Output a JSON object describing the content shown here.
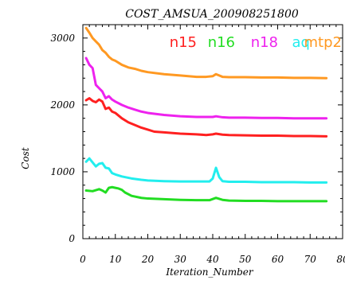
{
  "chart_data": {
    "type": "line",
    "title": "COST_AMSUA_200908251800",
    "xlabel": "Iteration_Number",
    "ylabel": "Cost",
    "xlim": [
      0,
      80
    ],
    "ylim": [
      0,
      3200
    ],
    "x_ticks": [
      0,
      10,
      20,
      30,
      40,
      50,
      60,
      70,
      80
    ],
    "y_ticks": [
      0,
      1000,
      2000,
      3000
    ],
    "legend_placement": "top",
    "series": [
      {
        "name": "n15",
        "color": "#ff2020",
        "points": [
          [
            1,
            2070
          ],
          [
            2,
            2100
          ],
          [
            3,
            2060
          ],
          [
            4,
            2040
          ],
          [
            5,
            2080
          ],
          [
            6,
            2050
          ],
          [
            7,
            1940
          ],
          [
            8,
            1960
          ],
          [
            9,
            1900
          ],
          [
            10,
            1880
          ],
          [
            12,
            1800
          ],
          [
            14,
            1740
          ],
          [
            16,
            1700
          ],
          [
            18,
            1660
          ],
          [
            20,
            1630
          ],
          [
            22,
            1600
          ],
          [
            25,
            1590
          ],
          [
            30,
            1570
          ],
          [
            35,
            1560
          ],
          [
            38,
            1550
          ],
          [
            40,
            1560
          ],
          [
            41,
            1570
          ],
          [
            43,
            1555
          ],
          [
            45,
            1550
          ],
          [
            50,
            1545
          ],
          [
            55,
            1540
          ],
          [
            60,
            1540
          ],
          [
            65,
            1535
          ],
          [
            70,
            1535
          ],
          [
            75,
            1530
          ]
        ]
      },
      {
        "name": "n16",
        "color": "#22dd22",
        "points": [
          [
            1,
            720
          ],
          [
            3,
            710
          ],
          [
            5,
            740
          ],
          [
            6,
            720
          ],
          [
            7,
            690
          ],
          [
            8,
            760
          ],
          [
            9,
            770
          ],
          [
            10,
            760
          ],
          [
            11,
            750
          ],
          [
            12,
            730
          ],
          [
            13,
            690
          ],
          [
            15,
            640
          ],
          [
            18,
            610
          ],
          [
            20,
            600
          ],
          [
            25,
            590
          ],
          [
            30,
            580
          ],
          [
            35,
            575
          ],
          [
            39,
            575
          ],
          [
            41,
            610
          ],
          [
            43,
            580
          ],
          [
            45,
            570
          ],
          [
            50,
            565
          ],
          [
            55,
            565
          ],
          [
            60,
            560
          ],
          [
            65,
            560
          ],
          [
            70,
            560
          ],
          [
            75,
            560
          ]
        ]
      },
      {
        "name": "n18",
        "color": "#ee22ee",
        "points": [
          [
            1,
            2700
          ],
          [
            2,
            2600
          ],
          [
            3,
            2550
          ],
          [
            4,
            2300
          ],
          [
            5,
            2250
          ],
          [
            6,
            2200
          ],
          [
            7,
            2100
          ],
          [
            8,
            2130
          ],
          [
            9,
            2080
          ],
          [
            10,
            2050
          ],
          [
            12,
            2000
          ],
          [
            14,
            1960
          ],
          [
            16,
            1930
          ],
          [
            18,
            1900
          ],
          [
            20,
            1880
          ],
          [
            25,
            1850
          ],
          [
            30,
            1830
          ],
          [
            35,
            1820
          ],
          [
            40,
            1820
          ],
          [
            41,
            1830
          ],
          [
            43,
            1815
          ],
          [
            45,
            1810
          ],
          [
            50,
            1810
          ],
          [
            55,
            1805
          ],
          [
            60,
            1805
          ],
          [
            65,
            1800
          ],
          [
            70,
            1800
          ],
          [
            75,
            1800
          ]
        ]
      },
      {
        "name": "aq",
        "color": "#22eeee",
        "points": [
          [
            1,
            1150
          ],
          [
            2,
            1200
          ],
          [
            3,
            1140
          ],
          [
            4,
            1080
          ],
          [
            5,
            1120
          ],
          [
            6,
            1130
          ],
          [
            7,
            1060
          ],
          [
            8,
            1050
          ],
          [
            9,
            980
          ],
          [
            10,
            960
          ],
          [
            12,
            930
          ],
          [
            15,
            900
          ],
          [
            18,
            880
          ],
          [
            20,
            870
          ],
          [
            25,
            860
          ],
          [
            30,
            855
          ],
          [
            35,
            855
          ],
          [
            39,
            855
          ],
          [
            40,
            900
          ],
          [
            41,
            1060
          ],
          [
            42,
            920
          ],
          [
            43,
            860
          ],
          [
            45,
            850
          ],
          [
            50,
            850
          ],
          [
            55,
            845
          ],
          [
            60,
            845
          ],
          [
            65,
            845
          ],
          [
            70,
            840
          ],
          [
            75,
            840
          ]
        ]
      },
      {
        "name": "mtp2",
        "color": "#ff9922",
        "points": [
          [
            1,
            3150
          ],
          [
            2,
            3080
          ],
          [
            3,
            3000
          ],
          [
            4,
            2950
          ],
          [
            5,
            2900
          ],
          [
            6,
            2820
          ],
          [
            7,
            2780
          ],
          [
            8,
            2720
          ],
          [
            9,
            2680
          ],
          [
            10,
            2660
          ],
          [
            12,
            2600
          ],
          [
            14,
            2560
          ],
          [
            16,
            2540
          ],
          [
            18,
            2510
          ],
          [
            20,
            2490
          ],
          [
            25,
            2460
          ],
          [
            30,
            2440
          ],
          [
            35,
            2420
          ],
          [
            38,
            2420
          ],
          [
            40,
            2430
          ],
          [
            41,
            2460
          ],
          [
            42,
            2440
          ],
          [
            43,
            2420
          ],
          [
            45,
            2415
          ],
          [
            50,
            2415
          ],
          [
            55,
            2410
          ],
          [
            60,
            2410
          ],
          [
            65,
            2405
          ],
          [
            70,
            2405
          ],
          [
            75,
            2400
          ]
        ]
      }
    ]
  }
}
